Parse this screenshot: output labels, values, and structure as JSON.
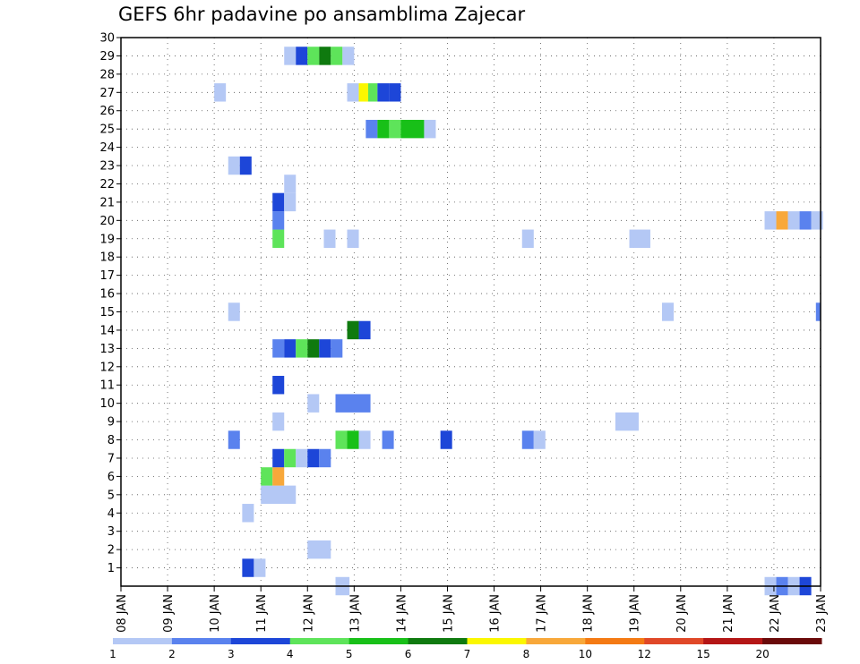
{
  "chart_data": {
    "type": "heatmap",
    "title": "GEFS 6hr padavine po ansamblima Zajecar",
    "xlabel": "",
    "ylabel": "",
    "x_tick_labels": [
      "08 JAN",
      "09 JAN",
      "10 JAN",
      "11 JAN",
      "12 JAN",
      "13 JAN",
      "14 JAN",
      "15 JAN",
      "16 JAN",
      "17 JAN",
      "18 JAN",
      "19 JAN",
      "20 JAN",
      "21 JAN",
      "22 JAN",
      "23 JAN"
    ],
    "x_range_days": [
      0,
      15
    ],
    "y_tick_labels": [
      "1",
      "2",
      "3",
      "4",
      "5",
      "6",
      "7",
      "8",
      "9",
      "10",
      "11",
      "12",
      "13",
      "14",
      "15",
      "16",
      "17",
      "18",
      "19",
      "20",
      "21",
      "22",
      "23",
      "24",
      "25",
      "26",
      "27",
      "28",
      "29",
      "30"
    ],
    "y_range": [
      0,
      30
    ],
    "grid": true,
    "colorbar": {
      "labels": [
        "1",
        "2",
        "3",
        "4",
        "5",
        "6",
        "7",
        "8",
        "10",
        "12",
        "15",
        "20"
      ],
      "colors": [
        "#b4c8f5",
        "#5a82ee",
        "#1d46d8",
        "#5ee45a",
        "#18c018",
        "#0f7a0f",
        "#fbf700",
        "#f8a83a",
        "#f47a14",
        "#e04828",
        "#b41616",
        "#6a0a0a"
      ]
    },
    "cells_note": "each cell: [x_start_day, x_end_day, y_member, color_class]",
    "cells": [
      [
        4.6,
        4.9,
        0,
        1
      ],
      [
        13.8,
        14.05,
        0,
        1
      ],
      [
        14.05,
        14.3,
        0,
        2
      ],
      [
        14.3,
        14.55,
        0,
        1
      ],
      [
        14.55,
        14.8,
        0,
        3
      ],
      [
        2.6,
        2.85,
        1,
        3
      ],
      [
        2.85,
        3.1,
        1,
        1
      ],
      [
        4.0,
        4.5,
        2,
        1
      ],
      [
        2.6,
        2.85,
        4,
        1
      ],
      [
        3.0,
        3.75,
        5,
        1
      ],
      [
        3.0,
        3.25,
        6,
        4
      ],
      [
        3.25,
        3.5,
        6,
        8
      ],
      [
        3.25,
        3.5,
        7,
        3
      ],
      [
        3.5,
        3.75,
        7,
        4
      ],
      [
        3.75,
        4.0,
        7,
        1
      ],
      [
        4.0,
        4.25,
        7,
        3
      ],
      [
        4.25,
        4.5,
        7,
        2
      ],
      [
        2.3,
        2.55,
        8,
        2
      ],
      [
        4.6,
        4.85,
        8,
        4
      ],
      [
        4.85,
        5.1,
        8,
        5
      ],
      [
        5.1,
        5.35,
        8,
        1
      ],
      [
        5.6,
        5.85,
        8,
        2
      ],
      [
        6.85,
        7.1,
        8,
        3
      ],
      [
        8.6,
        8.85,
        8,
        2
      ],
      [
        8.85,
        9.1,
        8,
        1
      ],
      [
        3.25,
        3.5,
        9,
        1
      ],
      [
        10.6,
        11.1,
        9,
        1
      ],
      [
        4.0,
        4.25,
        10,
        1
      ],
      [
        4.6,
        5.35,
        10,
        2
      ],
      [
        3.25,
        3.5,
        11,
        3
      ],
      [
        3.25,
        3.5,
        13,
        2
      ],
      [
        3.5,
        3.75,
        13,
        3
      ],
      [
        3.75,
        4.0,
        13,
        4
      ],
      [
        4.0,
        4.25,
        13,
        6
      ],
      [
        4.25,
        4.5,
        13,
        3
      ],
      [
        4.5,
        4.75,
        13,
        2
      ],
      [
        4.85,
        5.1,
        14,
        6
      ],
      [
        5.1,
        5.35,
        14,
        3
      ],
      [
        2.3,
        2.55,
        15,
        1
      ],
      [
        11.6,
        11.85,
        15,
        1
      ],
      [
        14.9,
        15.0,
        15,
        2
      ],
      [
        3.25,
        3.5,
        19,
        4
      ],
      [
        4.35,
        4.6,
        19,
        1
      ],
      [
        4.85,
        5.1,
        19,
        1
      ],
      [
        8.6,
        8.85,
        19,
        1
      ],
      [
        10.9,
        11.35,
        19,
        1
      ],
      [
        3.25,
        3.5,
        20,
        2
      ],
      [
        13.8,
        14.05,
        20,
        1
      ],
      [
        14.05,
        14.3,
        20,
        8
      ],
      [
        14.3,
        14.55,
        20,
        1
      ],
      [
        14.55,
        14.8,
        20,
        2
      ],
      [
        14.8,
        15.05,
        20,
        1
      ],
      [
        3.25,
        3.5,
        21,
        3
      ],
      [
        3.5,
        3.75,
        21,
        1
      ],
      [
        3.5,
        3.75,
        22,
        1
      ],
      [
        2.3,
        2.55,
        23,
        1
      ],
      [
        2.55,
        2.8,
        23,
        3
      ],
      [
        5.25,
        5.5,
        25,
        2
      ],
      [
        5.5,
        5.75,
        25,
        5
      ],
      [
        5.75,
        6.0,
        25,
        4
      ],
      [
        6.0,
        6.5,
        25,
        5
      ],
      [
        6.5,
        6.75,
        25,
        1
      ],
      [
        2.0,
        2.25,
        27,
        1
      ],
      [
        4.85,
        5.1,
        27,
        1
      ],
      [
        5.1,
        5.3,
        27,
        7
      ],
      [
        5.3,
        5.5,
        27,
        4
      ],
      [
        5.5,
        5.75,
        27,
        3
      ],
      [
        5.75,
        6.0,
        27,
        3
      ],
      [
        3.5,
        3.75,
        29,
        1
      ],
      [
        3.75,
        4.0,
        29,
        3
      ],
      [
        4.0,
        4.25,
        29,
        4
      ],
      [
        4.25,
        4.5,
        29,
        6
      ],
      [
        4.5,
        4.75,
        29,
        4
      ],
      [
        4.75,
        5.0,
        29,
        1
      ]
    ]
  }
}
